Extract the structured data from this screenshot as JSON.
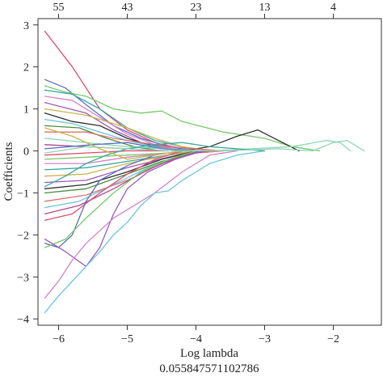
{
  "chart_data": {
    "type": "line",
    "xlabel": "Log lambda",
    "xlabel_value": "0.055847571102786",
    "ylabel": "Coefficients",
    "xlim": [
      -6.3,
      -1.3
    ],
    "ylim": [
      -4.15,
      3.15
    ],
    "x_ticks": [
      -6,
      -5,
      -4,
      -3,
      -2
    ],
    "y_ticks": [
      -4,
      -3,
      -2,
      -1,
      0,
      1,
      2,
      3
    ],
    "top_axis": {
      "positions": [
        -6,
        -5,
        -4,
        -3,
        -2
      ],
      "labels": [
        "55",
        "43",
        "23",
        "13",
        "4"
      ]
    },
    "grid": false,
    "x_range": [
      -6.2,
      -1.55
    ],
    "series": [
      {
        "color": "#dd4b6e",
        "points": [
          [
            -6.2,
            2.85
          ],
          [
            -5.8,
            2.0
          ],
          [
            -5.4,
            1.0
          ],
          [
            -5.0,
            0.5
          ],
          [
            -4.6,
            0.2
          ],
          [
            -4.2,
            0.05
          ],
          [
            -3.8,
            0.0
          ]
        ]
      },
      {
        "color": "#5a6fc0",
        "points": [
          [
            -6.2,
            1.7
          ],
          [
            -5.9,
            1.5
          ],
          [
            -5.6,
            1.1
          ],
          [
            -5.2,
            0.6
          ],
          [
            -4.8,
            0.3
          ],
          [
            -4.4,
            0.1
          ],
          [
            -4.0,
            0.0
          ]
        ]
      },
      {
        "color": "#77c96a",
        "points": [
          [
            -6.2,
            1.55
          ],
          [
            -5.9,
            1.4
          ],
          [
            -5.6,
            1.3
          ],
          [
            -5.2,
            1.0
          ],
          [
            -4.8,
            0.9
          ],
          [
            -4.5,
            0.95
          ],
          [
            -4.2,
            0.7
          ],
          [
            -3.6,
            0.45
          ],
          [
            -3.0,
            0.3
          ],
          [
            -2.6,
            0.1
          ],
          [
            -2.2,
            0.0
          ]
        ]
      },
      {
        "color": "#3aa6a0",
        "points": [
          [
            -6.2,
            1.45
          ],
          [
            -5.8,
            1.35
          ],
          [
            -5.4,
            1.0
          ],
          [
            -5.0,
            0.55
          ],
          [
            -4.6,
            0.25
          ],
          [
            -4.2,
            0.1
          ],
          [
            -3.8,
            0.0
          ]
        ]
      },
      {
        "color": "#d580c8",
        "points": [
          [
            -6.2,
            1.3
          ],
          [
            -5.8,
            1.2
          ],
          [
            -5.4,
            0.8
          ],
          [
            -5.0,
            0.4
          ],
          [
            -4.6,
            0.15
          ],
          [
            -4.2,
            0.0
          ]
        ]
      },
      {
        "color": "#9b59b6",
        "points": [
          [
            -6.2,
            1.15
          ],
          [
            -5.6,
            0.9
          ],
          [
            -5.2,
            0.5
          ],
          [
            -4.8,
            0.2
          ],
          [
            -4.4,
            0.05
          ],
          [
            -4.0,
            0.0
          ]
        ]
      },
      {
        "color": "#c8b44a",
        "points": [
          [
            -6.2,
            1.0
          ],
          [
            -5.6,
            0.85
          ],
          [
            -5.0,
            0.55
          ],
          [
            -4.6,
            0.3
          ],
          [
            -4.2,
            0.1
          ],
          [
            -3.8,
            0.0
          ]
        ]
      },
      {
        "color": "#2f2f2f",
        "points": [
          [
            -6.2,
            0.9
          ],
          [
            -5.8,
            0.7
          ],
          [
            -5.4,
            0.6
          ],
          [
            -5.0,
            0.3
          ],
          [
            -4.6,
            0.1
          ],
          [
            -4.2,
            0.0
          ],
          [
            -3.8,
            0.1
          ],
          [
            -3.4,
            0.35
          ],
          [
            -3.1,
            0.5
          ],
          [
            -2.8,
            0.25
          ],
          [
            -2.5,
            0.0
          ]
        ]
      },
      {
        "color": "#6cc4e0",
        "points": [
          [
            -6.2,
            0.75
          ],
          [
            -5.8,
            0.65
          ],
          [
            -5.4,
            0.45
          ],
          [
            -5.0,
            0.25
          ],
          [
            -4.6,
            0.1
          ],
          [
            -4.2,
            0.0
          ]
        ]
      },
      {
        "color": "#4a8c3f",
        "points": [
          [
            -6.2,
            0.6
          ],
          [
            -5.7,
            0.55
          ],
          [
            -5.3,
            0.3
          ],
          [
            -4.9,
            0.1
          ],
          [
            -4.5,
            0.0
          ]
        ]
      },
      {
        "color": "#e07070",
        "points": [
          [
            -6.2,
            0.45
          ],
          [
            -5.6,
            0.45
          ],
          [
            -5.2,
            0.3
          ],
          [
            -4.8,
            0.2
          ],
          [
            -4.4,
            0.1
          ],
          [
            -4.0,
            0.05
          ],
          [
            -3.6,
            0.0
          ]
        ]
      },
      {
        "color": "#8fd6b5",
        "points": [
          [
            -6.2,
            0.3
          ],
          [
            -5.6,
            0.2
          ],
          [
            -5.0,
            0.1
          ],
          [
            -4.4,
            0.05
          ],
          [
            -3.8,
            0.0
          ],
          [
            -3.2,
            0.05
          ],
          [
            -2.6,
            0.1
          ],
          [
            -2.1,
            0.25
          ],
          [
            -1.9,
            0.2
          ],
          [
            -1.75,
            0.0
          ]
        ]
      },
      {
        "color": "#b04a8a",
        "points": [
          [
            -6.2,
            0.15
          ],
          [
            -5.6,
            0.1
          ],
          [
            -5.0,
            0.05
          ],
          [
            -4.4,
            0.0
          ]
        ]
      },
      {
        "color": "#5a6fc0",
        "points": [
          [
            -6.2,
            0.05
          ],
          [
            -5.5,
            0.15
          ],
          [
            -5.0,
            0.2
          ],
          [
            -4.5,
            0.05
          ],
          [
            -4.0,
            0.0
          ]
        ]
      },
      {
        "color": "#dd4b6e",
        "points": [
          [
            -6.2,
            -0.1
          ],
          [
            -5.6,
            -0.05
          ],
          [
            -5.0,
            0.0
          ],
          [
            -4.4,
            0.0
          ]
        ]
      },
      {
        "color": "#77c96a",
        "points": [
          [
            -6.2,
            -0.2
          ],
          [
            -5.6,
            -0.15
          ],
          [
            -5.0,
            -0.1
          ],
          [
            -4.4,
            -0.05
          ],
          [
            -3.8,
            0.0
          ]
        ]
      },
      {
        "color": "#d580c8",
        "points": [
          [
            -6.2,
            -0.3
          ],
          [
            -5.6,
            -0.3
          ],
          [
            -5.0,
            -0.15
          ],
          [
            -4.4,
            -0.05
          ],
          [
            -3.8,
            0.0
          ]
        ]
      },
      {
        "color": "#3aa6a0",
        "points": [
          [
            -6.2,
            -0.45
          ],
          [
            -5.6,
            -0.4
          ],
          [
            -5.0,
            -0.25
          ],
          [
            -4.4,
            -0.1
          ],
          [
            -3.8,
            0.0
          ]
        ]
      },
      {
        "color": "#c8b44a",
        "points": [
          [
            -6.2,
            -0.6
          ],
          [
            -5.6,
            -0.55
          ],
          [
            -5.0,
            -0.3
          ],
          [
            -4.4,
            -0.1
          ],
          [
            -4.0,
            0.0
          ]
        ]
      },
      {
        "color": "#9b59b6",
        "points": [
          [
            -6.2,
            -0.75
          ],
          [
            -5.6,
            -0.7
          ],
          [
            -5.0,
            -0.4
          ],
          [
            -4.4,
            -0.15
          ],
          [
            -3.9,
            0.0
          ]
        ]
      },
      {
        "color": "#2f2f2f",
        "points": [
          [
            -6.2,
            -0.9
          ],
          [
            -5.6,
            -0.8
          ],
          [
            -5.0,
            -0.5
          ],
          [
            -4.5,
            -0.2
          ],
          [
            -4.0,
            0.0
          ]
        ]
      },
      {
        "color": "#4a8c3f",
        "points": [
          [
            -6.2,
            -1.0
          ],
          [
            -5.6,
            -0.9
          ],
          [
            -5.0,
            -0.55
          ],
          [
            -4.5,
            -0.25
          ],
          [
            -4.0,
            -0.05
          ],
          [
            -3.6,
            0.0
          ]
        ]
      },
      {
        "color": "#e07070",
        "points": [
          [
            -6.2,
            -1.2
          ],
          [
            -5.6,
            -1.05
          ],
          [
            -5.0,
            -0.7
          ],
          [
            -4.5,
            -0.3
          ],
          [
            -4.0,
            -0.05
          ],
          [
            -3.6,
            0.0
          ]
        ]
      },
      {
        "color": "#6cc4e0",
        "points": [
          [
            -6.2,
            -1.35
          ],
          [
            -5.7,
            -1.2
          ],
          [
            -5.2,
            -0.8
          ],
          [
            -4.7,
            -0.4
          ],
          [
            -4.2,
            -0.1
          ],
          [
            -3.8,
            0.0
          ]
        ]
      },
      {
        "color": "#b04a8a",
        "points": [
          [
            -6.2,
            -1.5
          ],
          [
            -5.7,
            -1.3
          ],
          [
            -5.2,
            -0.9
          ],
          [
            -4.7,
            -0.45
          ],
          [
            -4.2,
            -0.1
          ],
          [
            -3.8,
            0.0
          ]
        ]
      },
      {
        "color": "#dd4b6e",
        "points": [
          [
            -6.2,
            -1.65
          ],
          [
            -5.8,
            -1.5
          ],
          [
            -5.4,
            -1.0
          ],
          [
            -5.0,
            -0.55
          ],
          [
            -4.6,
            -0.2
          ],
          [
            -4.2,
            0.0
          ]
        ]
      },
      {
        "color": "#5a6fc0",
        "points": [
          [
            -6.2,
            -2.2
          ],
          [
            -6.0,
            -2.3
          ],
          [
            -5.8,
            -2.0
          ],
          [
            -5.6,
            -1.2
          ],
          [
            -5.4,
            -0.7
          ],
          [
            -5.0,
            -0.35
          ],
          [
            -4.6,
            -0.1
          ],
          [
            -4.2,
            0.0
          ]
        ]
      },
      {
        "color": "#77c96a",
        "points": [
          [
            -6.2,
            -2.3
          ],
          [
            -5.9,
            -2.1
          ],
          [
            -5.6,
            -1.6
          ],
          [
            -5.2,
            -1.0
          ],
          [
            -4.8,
            -0.5
          ],
          [
            -4.4,
            -0.2
          ],
          [
            -4.0,
            0.0
          ]
        ]
      },
      {
        "color": "#9b59b6",
        "points": [
          [
            -6.2,
            -2.1
          ],
          [
            -5.9,
            -2.4
          ],
          [
            -5.6,
            -2.75
          ],
          [
            -5.4,
            -2.3
          ],
          [
            -5.2,
            -1.5
          ],
          [
            -5.0,
            -0.9
          ],
          [
            -4.7,
            -0.5
          ],
          [
            -4.3,
            -0.2
          ],
          [
            -3.9,
            0.0
          ]
        ]
      },
      {
        "color": "#d580c8",
        "points": [
          [
            -6.2,
            -3.5
          ],
          [
            -6.0,
            -3.1
          ],
          [
            -5.8,
            -2.6
          ],
          [
            -5.6,
            -2.2
          ],
          [
            -5.4,
            -1.9
          ],
          [
            -5.2,
            -1.6
          ],
          [
            -5.0,
            -1.4
          ],
          [
            -4.6,
            -1.0
          ],
          [
            -4.2,
            -0.5
          ],
          [
            -3.8,
            -0.1
          ],
          [
            -3.4,
            0.0
          ]
        ]
      },
      {
        "color": "#6cc4e0",
        "points": [
          [
            -6.2,
            -3.85
          ],
          [
            -6.0,
            -3.45
          ],
          [
            -5.8,
            -3.1
          ],
          [
            -5.6,
            -2.75
          ],
          [
            -5.4,
            -2.4
          ],
          [
            -5.2,
            -2.0
          ],
          [
            -5.0,
            -1.7
          ],
          [
            -4.8,
            -1.3
          ],
          [
            -4.6,
            -1.0
          ],
          [
            -4.4,
            -0.95
          ],
          [
            -4.2,
            -0.7
          ],
          [
            -3.8,
            -0.3
          ],
          [
            -3.4,
            -0.1
          ],
          [
            -3.0,
            0.0
          ]
        ]
      },
      {
        "color": "#3aa6a0",
        "points": [
          [
            -6.2,
            -0.85
          ],
          [
            -5.9,
            -0.6
          ],
          [
            -5.6,
            -0.3
          ],
          [
            -5.3,
            -0.1
          ],
          [
            -5.0,
            0.05
          ],
          [
            -4.6,
            0.15
          ],
          [
            -4.2,
            0.2
          ],
          [
            -3.8,
            0.1
          ],
          [
            -3.4,
            0.05
          ],
          [
            -3.0,
            0.0
          ]
        ]
      },
      {
        "color": "#c8b44a",
        "points": [
          [
            -6.2,
            0.55
          ],
          [
            -5.8,
            0.35
          ],
          [
            -5.4,
            0.05
          ],
          [
            -5.0,
            -0.2
          ],
          [
            -4.6,
            -0.1
          ],
          [
            -4.2,
            0.0
          ]
        ]
      },
      {
        "color": "#8fd6b5",
        "points": [
          [
            -6.2,
            -0.05
          ],
          [
            -5.6,
            0.1
          ],
          [
            -5.0,
            0.05
          ],
          [
            -4.4,
            0.0
          ],
          [
            -3.6,
            0.0
          ],
          [
            -2.8,
            0.05
          ],
          [
            -2.3,
            0.0
          ],
          [
            -2.0,
            0.2
          ],
          [
            -1.8,
            0.25
          ],
          [
            -1.6,
            0.05
          ],
          [
            -1.55,
            0.0
          ]
        ]
      }
    ]
  }
}
